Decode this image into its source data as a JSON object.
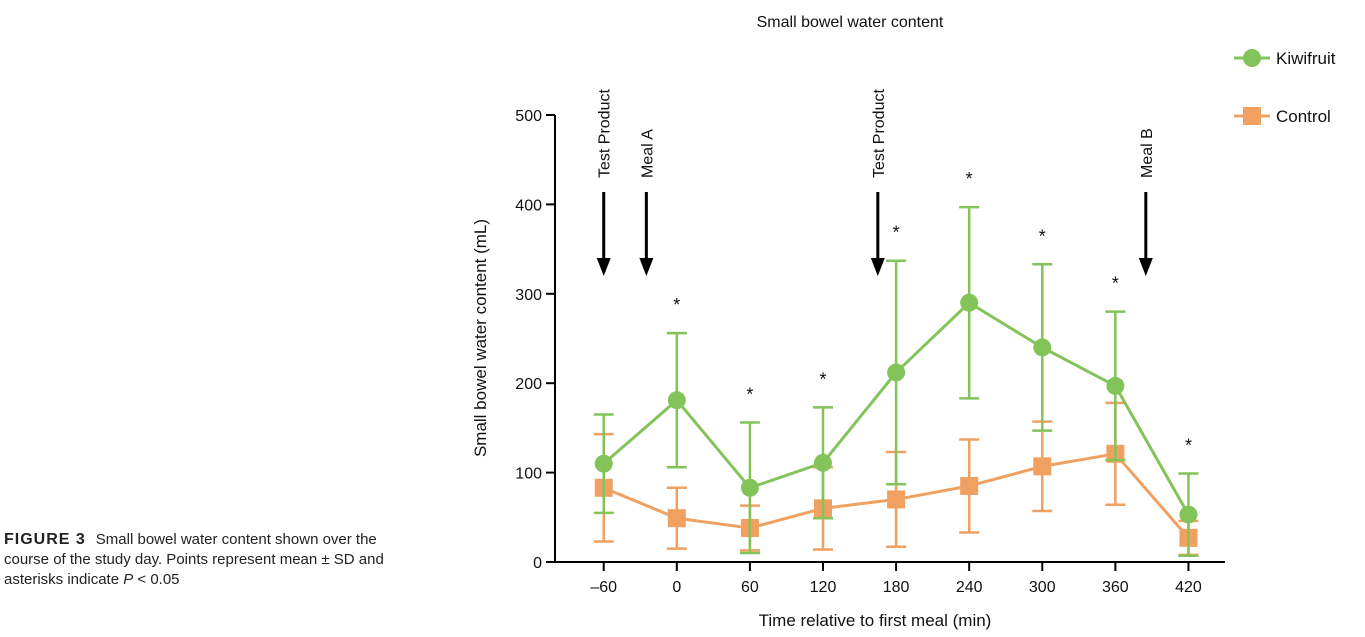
{
  "caption": {
    "label": "FIGURE 3",
    "text_a": "Small bowel water content shown over the course of the study day. Points represent mean ± SD and asterisks indicate ",
    "p_symbol": "P",
    "text_b": " < 0.05"
  },
  "chart_data": {
    "type": "line",
    "title": "Small bowel water content",
    "xlabel": "Time relative to first meal (min)",
    "ylabel": "Small bowel water content (mL)",
    "x": [
      -60,
      0,
      60,
      120,
      180,
      240,
      300,
      360,
      420
    ],
    "x_tick_labels": [
      "–60",
      "0",
      "60",
      "120",
      "180",
      "240",
      "300",
      "360",
      "420"
    ],
    "xlim": [
      -100,
      450
    ],
    "ylim": [
      0,
      500
    ],
    "y_ticks": [
      0,
      100,
      200,
      300,
      400,
      500
    ],
    "legend_position": "top-right",
    "series": [
      {
        "name": "Kiwifruit",
        "color": "#82c45a",
        "marker": "circle",
        "values": [
          110,
          181,
          83,
          111,
          212,
          290,
          240,
          197,
          53
        ],
        "sd": [
          55,
          75,
          73,
          62,
          125,
          107,
          93,
          83,
          46
        ]
      },
      {
        "name": "Control",
        "color": "#f0a060",
        "marker": "square",
        "values": [
          83,
          49,
          38,
          60,
          70,
          85,
          107,
          121,
          27
        ],
        "sd": [
          60,
          34,
          25,
          46,
          53,
          52,
          50,
          57,
          19
        ]
      }
    ],
    "significance": {
      "symbol": "*",
      "x": [
        0,
        60,
        120,
        180,
        240,
        300,
        360,
        420
      ]
    },
    "annotations": [
      {
        "label": "Test Product",
        "x": -60
      },
      {
        "label": "Meal A",
        "x": -25
      },
      {
        "label": "Test Product",
        "x": 165
      },
      {
        "label": "Meal B",
        "x": 385
      }
    ]
  }
}
